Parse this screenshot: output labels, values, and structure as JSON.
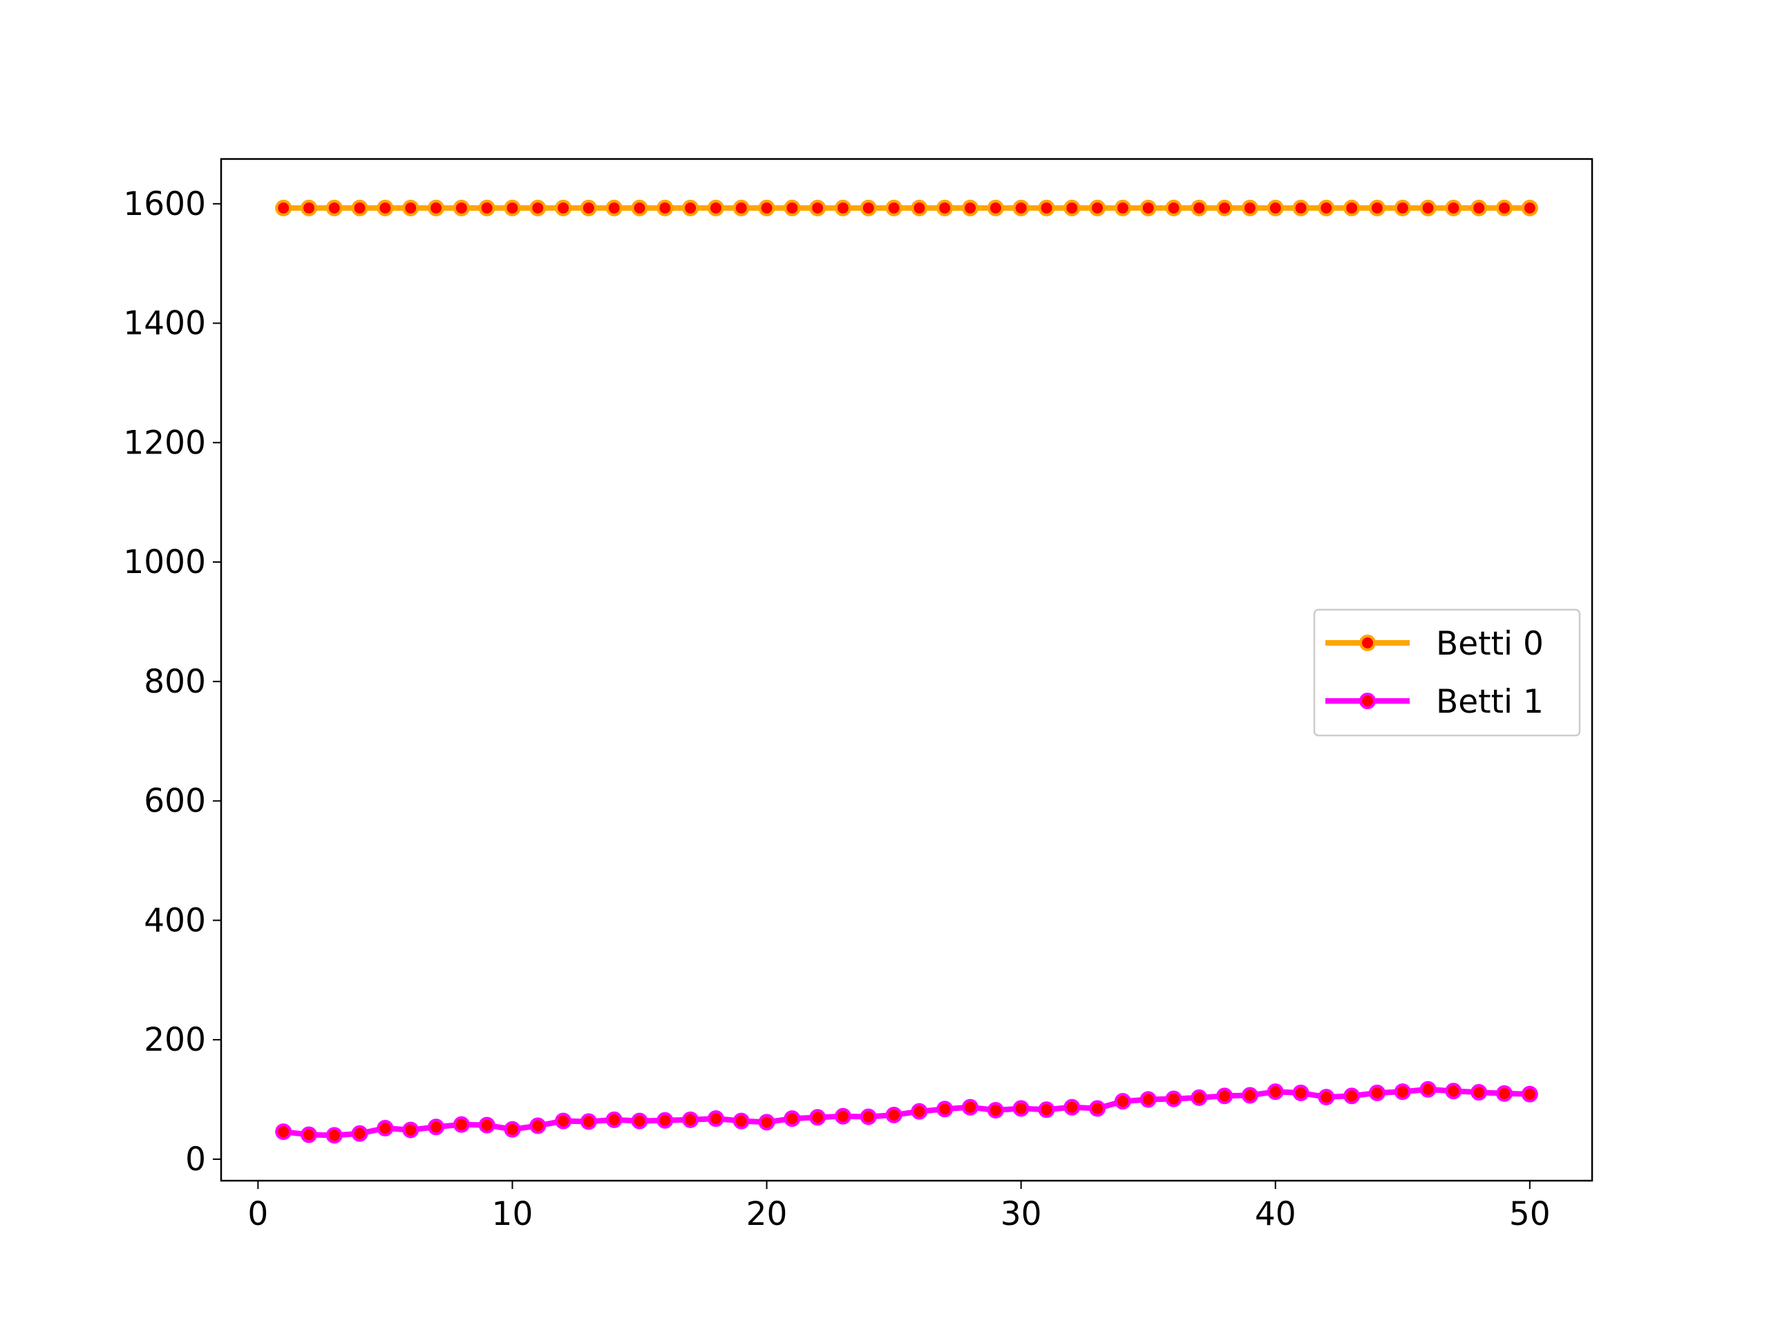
{
  "chart_data": {
    "type": "line",
    "title": "",
    "xlabel": "",
    "ylabel": "",
    "xlim": [
      -1.45,
      52.45
    ],
    "ylim": [
      -36,
      1675
    ],
    "x_ticks": [
      0,
      10,
      20,
      30,
      40,
      50
    ],
    "y_ticks": [
      0,
      200,
      400,
      600,
      800,
      1000,
      1200,
      1400,
      1600
    ],
    "grid": false,
    "legend": {
      "placement": "center-right",
      "entries": [
        "Betti 0",
        "Betti 1"
      ]
    },
    "marker_face_color": "#ff0000",
    "x": [
      1,
      2,
      3,
      4,
      5,
      6,
      7,
      8,
      9,
      10,
      11,
      12,
      13,
      14,
      15,
      16,
      17,
      18,
      19,
      20,
      21,
      22,
      23,
      24,
      25,
      26,
      27,
      28,
      29,
      30,
      31,
      32,
      33,
      34,
      35,
      36,
      37,
      38,
      39,
      40,
      41,
      42,
      43,
      44,
      45,
      46,
      47,
      48,
      49,
      50
    ],
    "series": [
      {
        "name": "Betti 0",
        "color": "#ffa500",
        "values": [
          1593,
          1593,
          1593,
          1593,
          1593,
          1593,
          1593,
          1593,
          1593,
          1593,
          1593,
          1593,
          1593,
          1593,
          1593,
          1593,
          1593,
          1593,
          1593,
          1593,
          1593,
          1593,
          1593,
          1593,
          1593,
          1593,
          1593,
          1593,
          1593,
          1593,
          1593,
          1593,
          1593,
          1593,
          1593,
          1593,
          1593,
          1593,
          1593,
          1593,
          1593,
          1593,
          1593,
          1593,
          1593,
          1593,
          1593,
          1593,
          1593,
          1593
        ]
      },
      {
        "name": "Betti 1",
        "color": "#ff00ff",
        "values": [
          46,
          41,
          40,
          43,
          52,
          49,
          54,
          58,
          57,
          50,
          56,
          64,
          63,
          66,
          64,
          65,
          66,
          68,
          64,
          62,
          68,
          70,
          72,
          71,
          74,
          80,
          84,
          87,
          82,
          85,
          83,
          87,
          85,
          97,
          100,
          101,
          103,
          106,
          107,
          113,
          111,
          104,
          106,
          111,
          113,
          117,
          114,
          112,
          110,
          109
        ]
      }
    ]
  }
}
